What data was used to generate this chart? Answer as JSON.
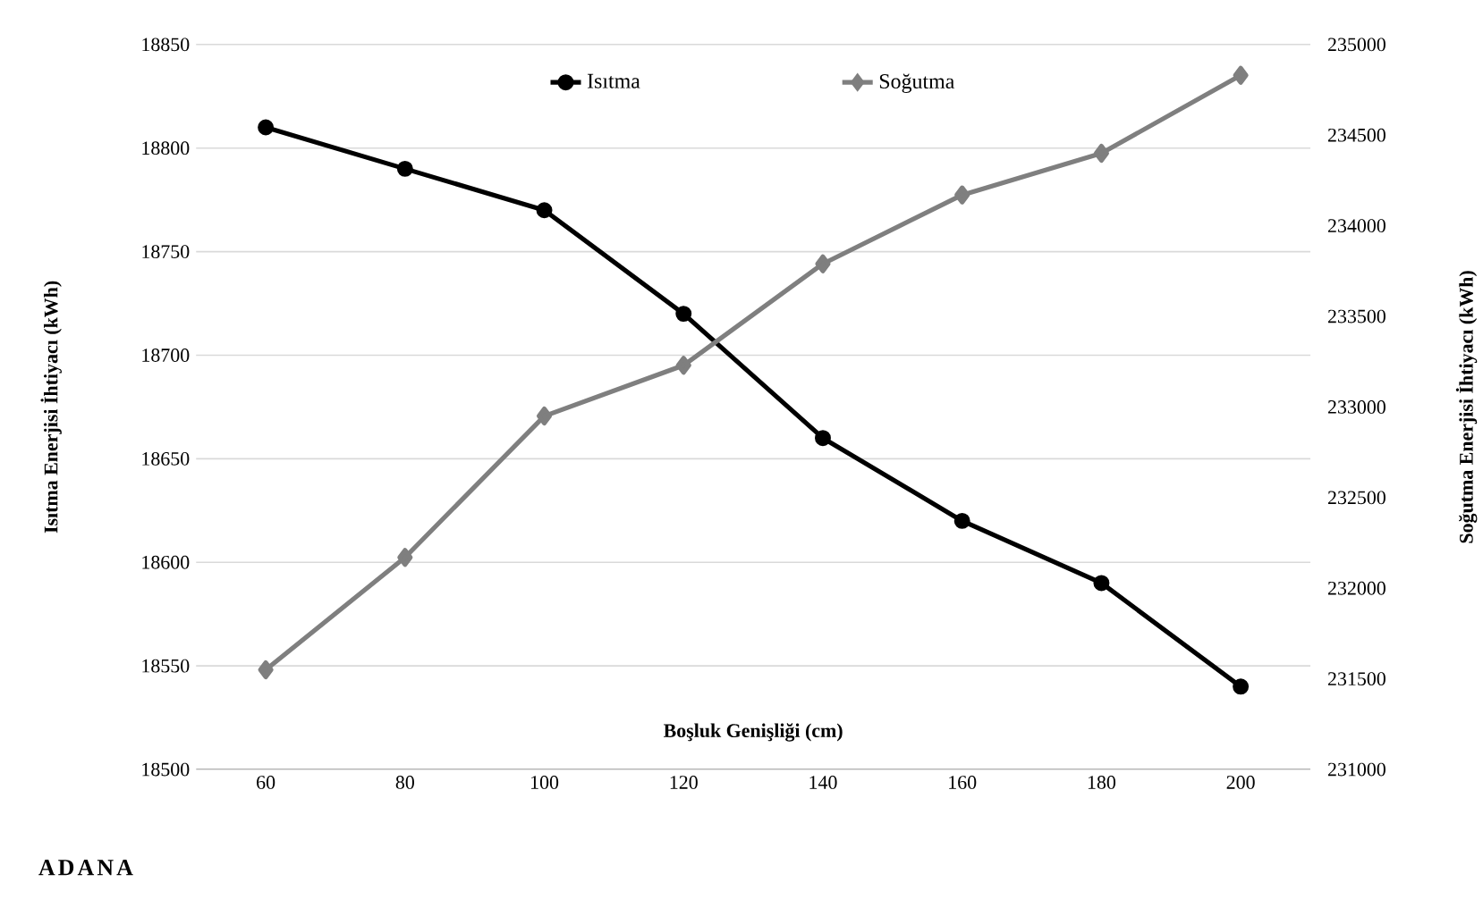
{
  "chart_data": {
    "type": "line",
    "xlabel": "Boşluk Genişliği (cm)",
    "ylabel": "Isıtma Enerjisi İhtiyacı (kWh)",
    "y2label": "Soğutma Enerjisi İhtiyacı (kWh)",
    "categories": [
      "60",
      "80",
      "100",
      "120",
      "140",
      "160",
      "180",
      "200"
    ],
    "series": [
      {
        "name": "Isıtma",
        "color": "#000000",
        "marker": "circle",
        "values": [
          18810,
          18790,
          18770,
          18720,
          18660,
          18620,
          18590,
          18540
        ]
      },
      {
        "name": "Soğutma",
        "color": "#7f7f7f",
        "marker": "diamond",
        "axis": "y2",
        "values": [
          231550,
          232170,
          232950,
          233230,
          233790,
          234170,
          234400,
          234830
        ]
      }
    ],
    "ylim": [
      18500,
      18850
    ],
    "yticks": [
      18500,
      18550,
      18600,
      18650,
      18700,
      18750,
      18800,
      18850
    ],
    "y2lim": [
      231000,
      235000
    ],
    "y2ticks": [
      231000,
      231500,
      232000,
      232500,
      233000,
      233500,
      234000,
      234500,
      235000
    ],
    "grid": "y",
    "legend": "top",
    "annotations": [
      "ADANA"
    ]
  }
}
